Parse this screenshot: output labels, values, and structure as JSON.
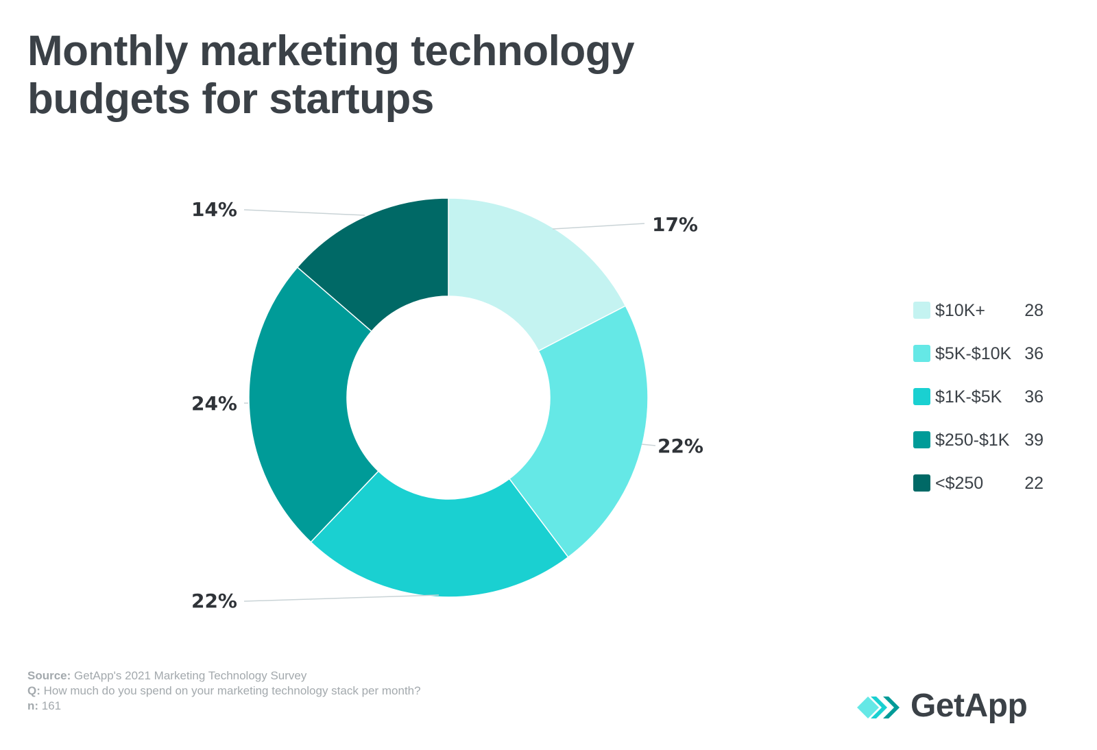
{
  "title": {
    "line1": "Monthly marketing technology",
    "line2": "budgets for startups"
  },
  "chart_data": {
    "type": "pie",
    "subtype": "donut",
    "categories": [
      "$10K+",
      "$5K-$10K",
      "$1K-$5K",
      "$250-$1K",
      "<$250"
    ],
    "values": [
      28,
      36,
      36,
      39,
      22
    ],
    "percent_labels": [
      "17%",
      "22%",
      "22%",
      "24%",
      "14%"
    ],
    "colors": [
      "#c4f3f1",
      "#65e8e6",
      "#1ad0d1",
      "#009b98",
      "#006966"
    ],
    "legend_position": "right"
  },
  "footer": {
    "source_key": "Source:",
    "source_text": " GetApp's 2021 Marketing Technology Survey",
    "question_key": "Q:",
    "question_text": " How much do you spend on your marketing technology stack per month?",
    "n_key": "n:",
    "n_text": " 161"
  },
  "brand": {
    "name": "GetApp",
    "logo_icon": "getapp-chevrons-icon",
    "logo_colors": [
      "#1ad0d1",
      "#65e8e6",
      "#009b98"
    ]
  }
}
